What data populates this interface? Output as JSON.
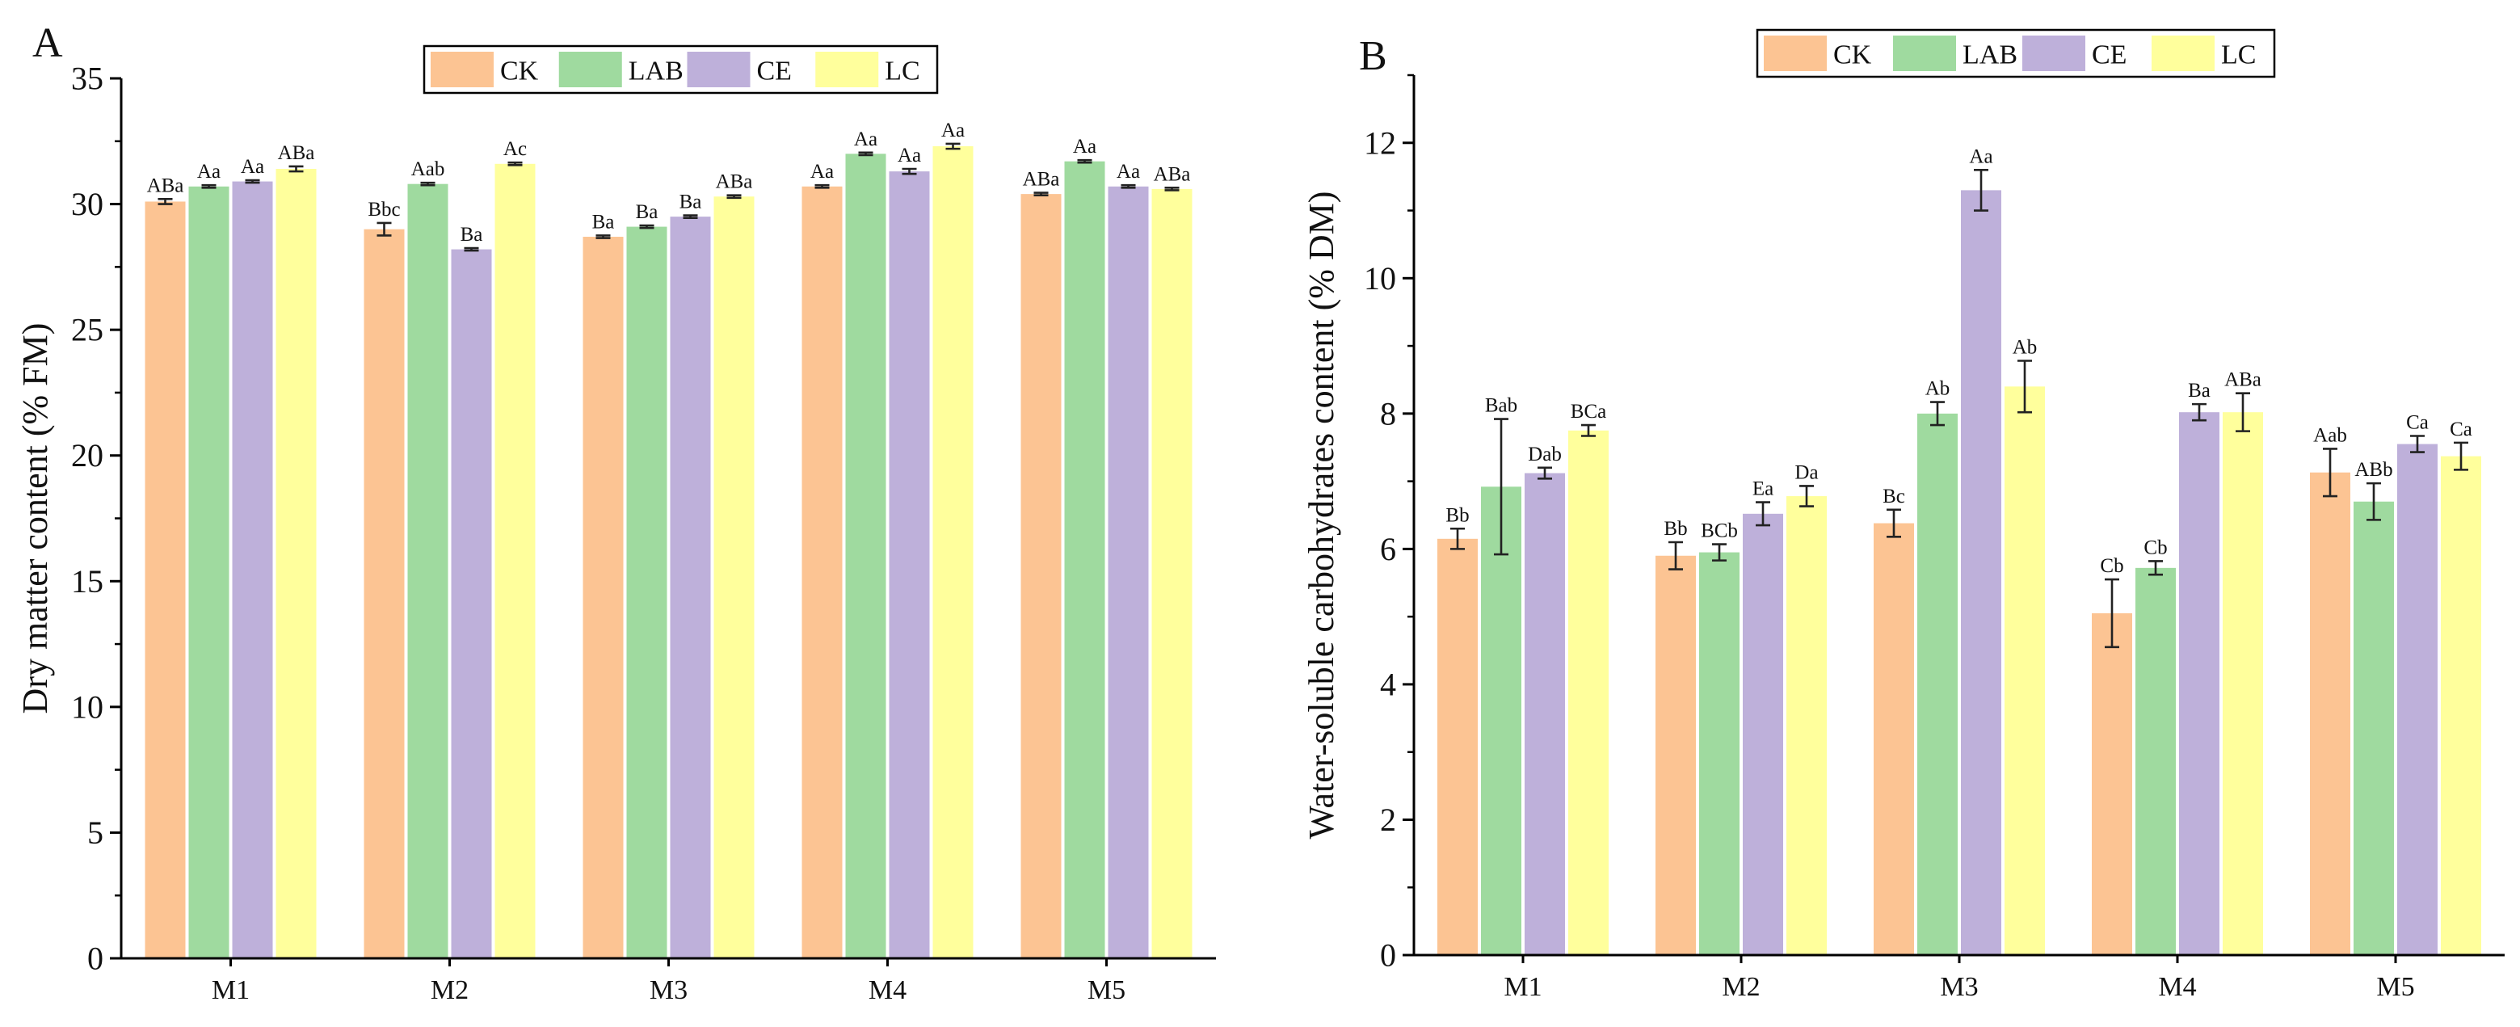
{
  "chart_data": [
    {
      "panel": "A",
      "type": "bar",
      "ylabel": "Dry matter content (% FM)",
      "xlabel": "",
      "ylim": [
        0,
        35
      ],
      "yticks": [
        0,
        5,
        10,
        15,
        20,
        25,
        30,
        35
      ],
      "categories": [
        "M1",
        "M2",
        "M3",
        "M4",
        "M5"
      ],
      "series": [
        {
          "name": "CK",
          "color": "#FCC493",
          "values": [
            30.1,
            29.0,
            28.7,
            30.7,
            30.4
          ],
          "errors": [
            0.1,
            0.25,
            0.05,
            0.05,
            0.05
          ],
          "labels": [
            "ABa",
            "Bbc",
            "Ba",
            "Aa",
            "ABa"
          ]
        },
        {
          "name": "LAB",
          "color": "#9FDA9F",
          "values": [
            30.7,
            30.8,
            29.1,
            32.0,
            31.7
          ],
          "errors": [
            0.05,
            0.05,
            0.05,
            0.05,
            0.05
          ],
          "labels": [
            "Aa",
            "Aab",
            "Ba",
            "Aa",
            "Aa"
          ]
        },
        {
          "name": "CE",
          "color": "#BEB0DA",
          "values": [
            30.9,
            28.2,
            29.5,
            31.3,
            30.7
          ],
          "errors": [
            0.05,
            0.05,
            0.05,
            0.1,
            0.05
          ],
          "labels": [
            "Aa",
            "Ba",
            "Ba",
            "Aa",
            "Aa"
          ]
        },
        {
          "name": "LC",
          "color": "#FFFF9C",
          "values": [
            31.4,
            31.6,
            30.3,
            32.3,
            30.6
          ],
          "errors": [
            0.1,
            0.05,
            0.05,
            0.1,
            0.05
          ],
          "labels": [
            "ABa",
            "Ac",
            "ABa",
            "Aa",
            "ABa"
          ]
        }
      ],
      "legend": [
        "CK",
        "LAB",
        "CE",
        "LC"
      ],
      "legend_position": "top-center"
    },
    {
      "panel": "B",
      "type": "bar",
      "ylabel": "Water-soluble carbohydrates content (% DM)",
      "xlabel": "",
      "ylim": [
        0,
        13
      ],
      "yticks": [
        0,
        2,
        4,
        6,
        8,
        10,
        12
      ],
      "categories": [
        "M1",
        "M2",
        "M3",
        "M4",
        "M5"
      ],
      "series": [
        {
          "name": "CK",
          "color": "#FCC493",
          "values": [
            6.15,
            5.9,
            6.38,
            5.05,
            7.13
          ],
          "errors": [
            0.15,
            0.2,
            0.2,
            0.5,
            0.35
          ],
          "labels": [
            "Bb",
            "Bb",
            "Bc",
            "Cb",
            "Aab"
          ]
        },
        {
          "name": "LAB",
          "color": "#9FDA9F",
          "values": [
            6.92,
            5.95,
            8.0,
            5.72,
            6.7
          ],
          "errors": [
            1.0,
            0.12,
            0.17,
            0.1,
            0.27
          ],
          "labels": [
            "Bab",
            "BCb",
            "Ab",
            "Cb",
            "ABb"
          ]
        },
        {
          "name": "CE",
          "color": "#BEB0DA",
          "values": [
            7.12,
            6.52,
            11.3,
            8.02,
            7.55
          ],
          "errors": [
            0.08,
            0.17,
            0.3,
            0.12,
            0.12
          ],
          "labels": [
            "Dab",
            "Ea",
            "Aa",
            "Ba",
            "Ca"
          ]
        },
        {
          "name": "LC",
          "color": "#FFFF9C",
          "values": [
            7.75,
            6.78,
            8.4,
            8.02,
            7.37
          ],
          "errors": [
            0.08,
            0.15,
            0.38,
            0.28,
            0.2
          ],
          "labels": [
            "BCa",
            "Da",
            "Ab",
            "ABa",
            "Ca"
          ]
        }
      ],
      "legend": [
        "CK",
        "LAB",
        "CE",
        "LC"
      ],
      "legend_position": "top-center"
    }
  ]
}
